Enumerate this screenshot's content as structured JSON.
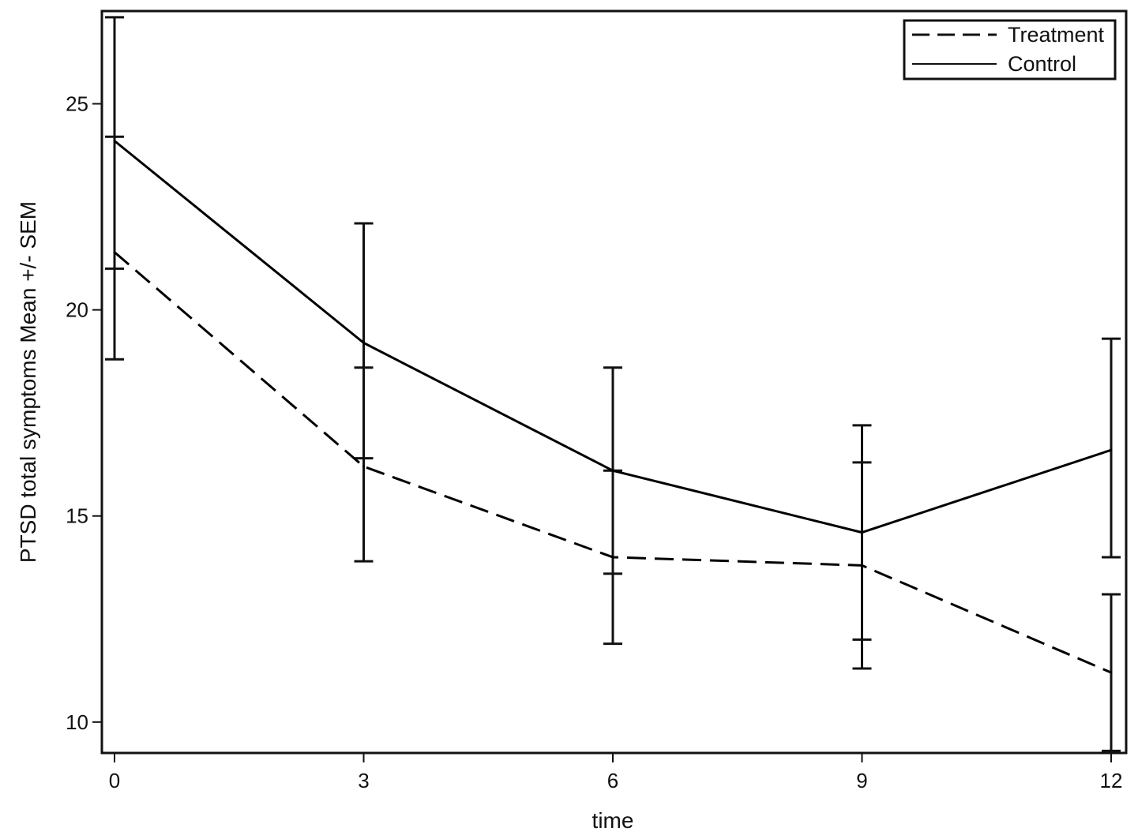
{
  "chart_data": {
    "type": "line",
    "xlabel": "time",
    "ylabel": "PTSD total symptoms Mean +/- SEM",
    "xlim": [
      0,
      12
    ],
    "ylim": [
      9.25,
      27.25
    ],
    "xticks": [
      0,
      3,
      6,
      9,
      12
    ],
    "yticks": [
      10,
      15,
      20,
      25
    ],
    "grid": false,
    "legend_position": "top-right",
    "x": [
      0,
      3,
      6,
      9,
      12
    ],
    "series": [
      {
        "name": "Treatment",
        "style": "dashed",
        "color": "#000000",
        "values": [
          21.4,
          16.2,
          14.0,
          13.8,
          11.2
        ],
        "err_low": [
          18.8,
          13.9,
          11.9,
          11.3,
          9.3
        ],
        "err_high": [
          24.2,
          18.6,
          16.1,
          16.3,
          13.1
        ]
      },
      {
        "name": "Control",
        "style": "solid",
        "color": "#000000",
        "values": [
          24.1,
          19.2,
          16.1,
          14.6,
          16.6
        ],
        "err_low": [
          21.0,
          16.4,
          13.6,
          12.0,
          14.0
        ],
        "err_high": [
          27.1,
          22.1,
          18.6,
          17.2,
          19.3
        ]
      }
    ]
  }
}
